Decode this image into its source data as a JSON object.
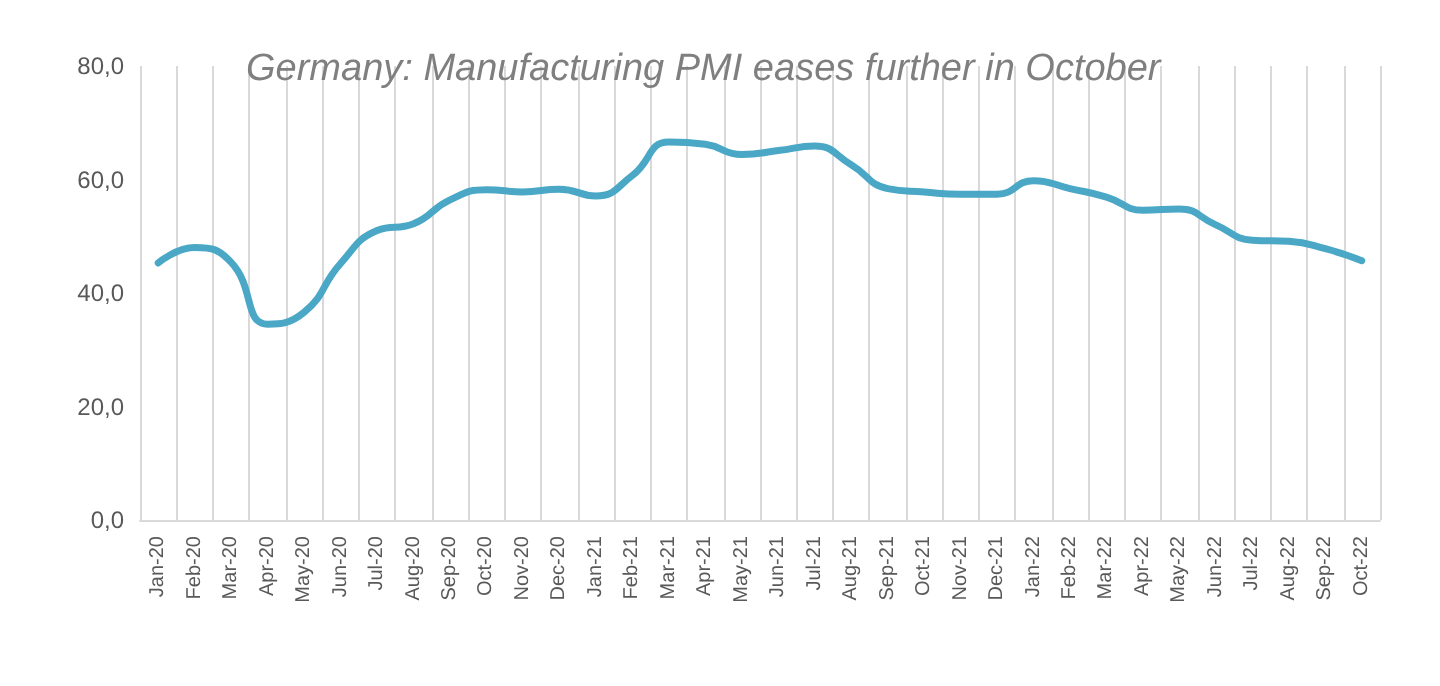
{
  "chart_data": {
    "type": "line",
    "title": "Germany: Manufacturing PMI eases further in October",
    "categories": [
      "Jan-20",
      "Feb-20",
      "Mar-20",
      "Apr-20",
      "May-20",
      "Jun-20",
      "Jul-20",
      "Aug-20",
      "Sep-20",
      "Oct-20",
      "Nov-20",
      "Dec-20",
      "Jan-21",
      "Feb-21",
      "Mar-21",
      "Apr-21",
      "May-21",
      "Jun-21",
      "Jul-21",
      "Aug-21",
      "Sep-21",
      "Oct-21",
      "Nov-21",
      "Dec-21",
      "Jan-22",
      "Feb-22",
      "Mar-22",
      "Apr-22",
      "May-22",
      "Jun-22",
      "Jul-22",
      "Aug-22",
      "Sep-22",
      "Oct-22"
    ],
    "values": [
      45.3,
      48.0,
      45.4,
      34.5,
      36.6,
      45.2,
      51.0,
      52.2,
      56.4,
      58.2,
      57.8,
      58.3,
      57.1,
      60.7,
      66.6,
      66.2,
      64.4,
      65.1,
      65.9,
      62.6,
      58.4,
      57.8,
      57.4,
      57.4,
      59.8,
      58.4,
      56.9,
      54.6,
      54.8,
      52.0,
      49.3,
      49.1,
      47.8,
      45.7
    ],
    "color": "#4aa8c6",
    "ylim": [
      0,
      80
    ],
    "yticks": [
      {
        "value": 0,
        "label": "0,0"
      },
      {
        "value": 20,
        "label": "20,0"
      },
      {
        "value": 40,
        "label": "40,0"
      },
      {
        "value": 60,
        "label": "60,0"
      },
      {
        "value": 80,
        "label": "80,0"
      }
    ],
    "grid": "x",
    "marker": "none"
  }
}
